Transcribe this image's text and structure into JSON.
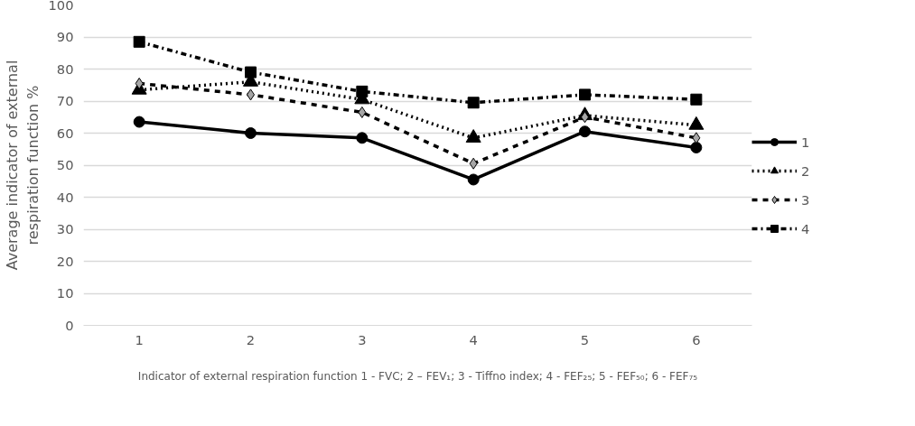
{
  "chart_data": {
    "type": "line",
    "xlabel": "Indicator of external respiration function 1 - FVC; 2 – FEV₁; 3 - Tiffno index; 4 - FEF₂₅; 5 - FEF₅₀; 6 - FEF₇₅",
    "ylabel": "Average indicator of external\nrespiration function %",
    "categories": [
      "1",
      "2",
      "3",
      "4",
      "5",
      "6"
    ],
    "ylim": [
      0,
      100
    ],
    "yticks": [
      0,
      10,
      20,
      30,
      40,
      50,
      60,
      70,
      80,
      90,
      100
    ],
    "grid": "y",
    "legend": "right",
    "series": [
      {
        "name": "1",
        "color": "#000000",
        "marker": "circle",
        "line_style": "solid",
        "values": [
          63.5,
          60,
          58.5,
          45.5,
          60.5,
          55.5
        ]
      },
      {
        "name": "2",
        "color": "#000000",
        "marker": "triangle",
        "line_style": "dotted",
        "values": [
          73.5,
          76,
          70.5,
          58.5,
          65.5,
          62.5
        ]
      },
      {
        "name": "3",
        "color": "#000000",
        "marker": "diamond",
        "line_style": "dashed",
        "values": [
          75.5,
          72,
          66.5,
          50.5,
          65,
          58.5
        ]
      },
      {
        "name": "4",
        "color": "#000000",
        "marker": "square",
        "line_style": "dashdot",
        "values": [
          88.5,
          79,
          73,
          69.5,
          72,
          70.5
        ]
      }
    ]
  }
}
